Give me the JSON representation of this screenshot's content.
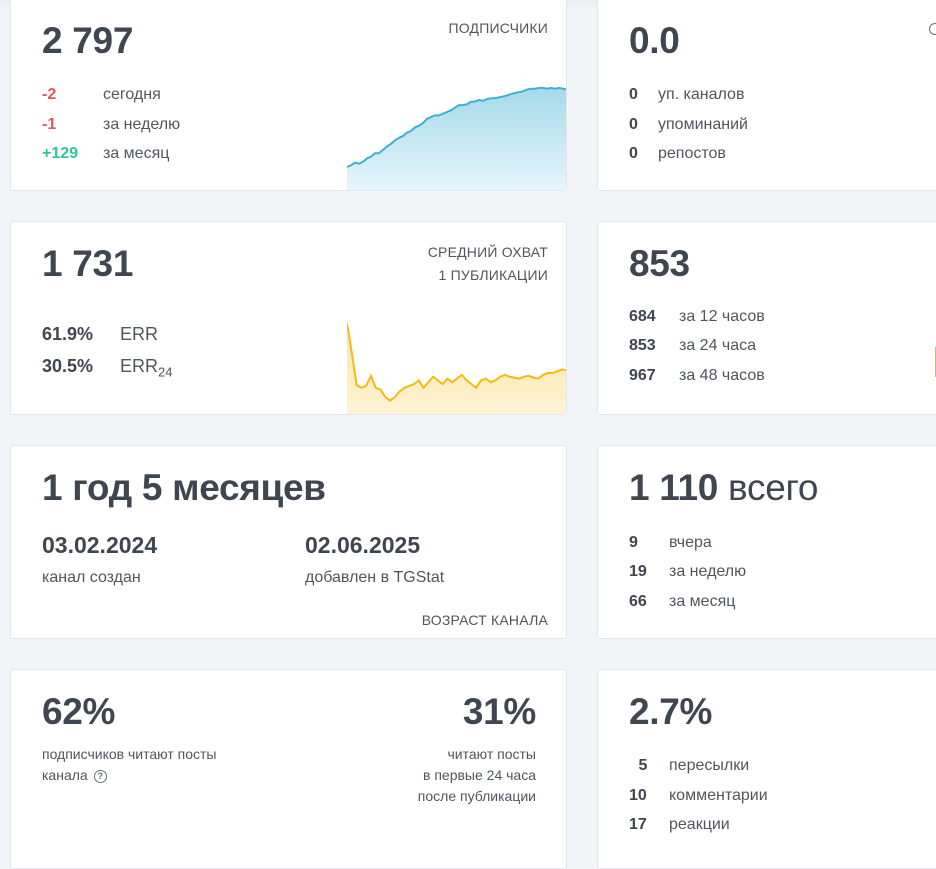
{
  "subscribers": {
    "value": "2 797",
    "caption": "ПОДПИСЧИКИ",
    "stats": [
      {
        "value": "-2",
        "label": "сегодня"
      },
      {
        "value": "-1",
        "label": "за неделю"
      },
      {
        "value": "+129",
        "label": "за месяц"
      }
    ]
  },
  "citation": {
    "value": "0.0",
    "stats": [
      {
        "value": "0",
        "label": "уп. каналов"
      },
      {
        "value": "0",
        "label": "упоминаний"
      },
      {
        "value": "0",
        "label": "репостов"
      }
    ]
  },
  "reach": {
    "value": "1 731",
    "caption_line1": "СРЕДНИЙ ОХВАТ",
    "caption_line2": "1 ПУБЛИКАЦИИ",
    "err": {
      "value": "61.9%",
      "label": "ERR"
    },
    "err24": {
      "value": "30.5%",
      "label": "ERR",
      "sub": "24"
    }
  },
  "views": {
    "value": "853",
    "stats": [
      {
        "value": "684",
        "label": "за 12 часов"
      },
      {
        "value": "853",
        "label": "за 24 часа"
      },
      {
        "value": "967",
        "label": "за 48 часов"
      }
    ]
  },
  "age": {
    "value": "1 год 5 месяцев",
    "created_date": "03.02.2024",
    "created_label": "канал создан",
    "added_date": "02.06.2025",
    "added_label": "добавлен в TGStat",
    "caption": "ВОЗРАСТ КАНАЛА"
  },
  "posts": {
    "value": "1 110",
    "suffix": "всего",
    "stats": [
      {
        "value": "9",
        "label": "вчера"
      },
      {
        "value": "19",
        "label": "за неделю"
      },
      {
        "value": "66",
        "label": "за месяц"
      }
    ]
  },
  "readers": {
    "left_value": "62%",
    "left_line1": "подписчиков читают посты",
    "left_line2": "канала",
    "right_value": "31%",
    "right_line1": "читают посты",
    "right_line2": "в первые 24 часа",
    "right_line3": "после публикации"
  },
  "engagement": {
    "value": "2.7%",
    "stats": [
      {
        "value": "5",
        "label": "пересылки"
      },
      {
        "value": "10",
        "label": "комментарии"
      },
      {
        "value": "17",
        "label": "реакции"
      }
    ]
  },
  "subscriber_trend": [
    0,
    2,
    5,
    4,
    6,
    10,
    12,
    16,
    16,
    20,
    24,
    27,
    31,
    34,
    36,
    40,
    42,
    46,
    48,
    51,
    56,
    58,
    60,
    60,
    62,
    64,
    66,
    69,
    72,
    72,
    73,
    76,
    76,
    78,
    77,
    79,
    80,
    80,
    81,
    82,
    83,
    85,
    86,
    87,
    88,
    90,
    91,
    91,
    92,
    92,
    91,
    92,
    91,
    92,
    91,
    90
  ],
  "reach_trend": [
    92,
    60,
    25,
    22,
    24,
    35,
    22,
    20,
    12,
    8,
    12,
    18,
    22,
    24,
    26,
    30,
    22,
    28,
    34,
    30,
    26,
    32,
    28,
    32,
    36,
    30,
    26,
    22,
    30,
    32,
    28,
    30,
    34,
    36,
    34,
    33,
    32,
    34,
    35,
    33,
    32,
    36,
    38,
    38,
    40,
    42,
    41
  ]
}
